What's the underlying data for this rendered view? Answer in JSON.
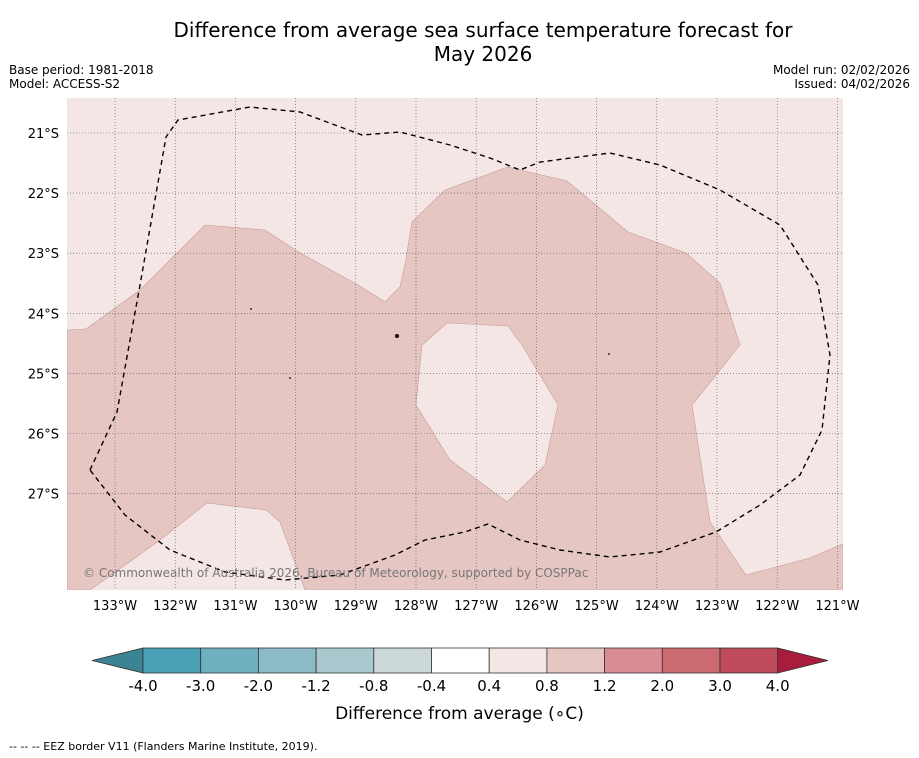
{
  "title_line1": "Difference from average sea surface temperature forecast for",
  "title_line2": "May 2026",
  "base_period": "Base period: 1981-2018",
  "model": "Model: ACCESS-S2",
  "model_run": "Model run: 02/02/2026",
  "issued": "Issued: 04/02/2026",
  "copyright": "© Commonwealth of Australia 2026, Bureau of Meteorology, supported by COSPPac",
  "lon_labels": [
    "133°W",
    "132°W",
    "131°W",
    "130°W",
    "129°W",
    "128°W",
    "127°W",
    "126°W",
    "125°W",
    "124°W",
    "123°W",
    "122°W",
    "121°W"
  ],
  "lat_labels": [
    "21°S",
    "22°S",
    "23°S",
    "24°S",
    "25°S",
    "26°S",
    "27°S"
  ],
  "colorbar": {
    "title": "Difference from average (∘C)",
    "tick_labels": [
      "-4.0",
      "-3.0",
      "-2.0",
      "-1.2",
      "-0.8",
      "-0.4",
      "0.4",
      "0.8",
      "1.2",
      "2.0",
      "3.0",
      "4.0"
    ],
    "colors": [
      "#4aa0b4",
      "#6eb0be",
      "#8cbac6",
      "#a8c8ce",
      "#ccd8da",
      "#ffffff",
      "#f4e6e4",
      "#e6c6c2",
      "#d98c94",
      "#cc6a72",
      "#bf4a5a"
    ],
    "low_extend_color": "#3a8494",
    "high_extend_color": "#a81c3c"
  },
  "map_colors": {
    "band_0_4_0_8": "#f4e6e4",
    "band_0_8_1_2": "#e6c6c2"
  },
  "legend_note": "--  --  -- EEZ border V11 (Flanders Marine Institute, 2019)."
}
